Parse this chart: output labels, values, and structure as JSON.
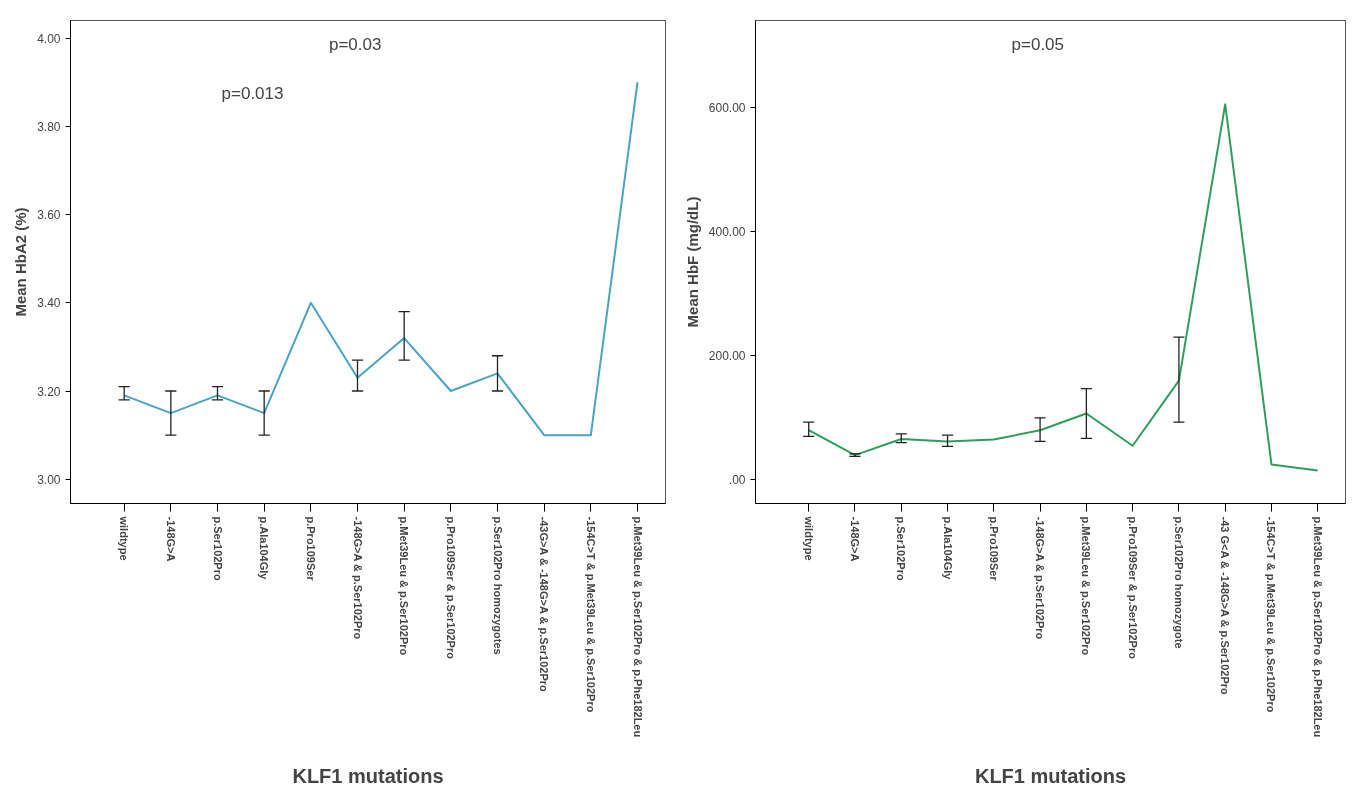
{
  "chart_data": [
    {
      "type": "line",
      "xlabel": "KLF1 mutations",
      "ylabel": "Mean HbA2 (%)",
      "categories": [
        "wildtype",
        "-148G>A",
        "p.Ser102Pro",
        "p.Ala104Gly",
        "p.Pro109Ser",
        "-148G>A & p.Ser102Pro",
        "p.Met39Leu & p.Ser102Pro",
        "p.Pro109Ser & p.Ser102Pro",
        "p.Ser102Pro homozygotes",
        "-43G>A & -148G>A & p.Ser102Pro",
        "-154C>T & p.Met39Leu & p.Ser102Pro",
        "p.Met39Leu & p.Ser102Pro & p.Phe182Leu"
      ],
      "series": [
        {
          "color": "#4aa3c2",
          "values": [
            3.19,
            3.15,
            3.19,
            3.15,
            3.4,
            3.23,
            3.32,
            3.2,
            3.24,
            3.1,
            3.1,
            3.9
          ],
          "errors": [
            [
              3.18,
              3.21
            ],
            [
              3.1,
              3.2
            ],
            [
              3.18,
              3.21
            ],
            [
              3.1,
              3.2
            ],
            null,
            [
              3.2,
              3.27
            ],
            [
              3.27,
              3.38
            ],
            null,
            [
              3.2,
              3.28
            ],
            null,
            null,
            null
          ]
        }
      ],
      "ylim": [
        2.945,
        4.04
      ],
      "yticks": [
        {
          "value": 3.0,
          "label": "3.00"
        },
        {
          "value": 3.2,
          "label": "3.20"
        },
        {
          "value": 3.4,
          "label": "3.40"
        },
        {
          "value": 3.6,
          "label": "3.60"
        },
        {
          "value": 3.8,
          "label": "3.80"
        },
        {
          "value": 4.0,
          "label": "4.00"
        }
      ],
      "grid": false,
      "annotations": [
        "p=0.013",
        "p=0.03"
      ]
    },
    {
      "type": "line",
      "xlabel": "KLF1 mutations",
      "ylabel": "Mean HbF (mg/dL)",
      "categories": [
        "wildtype",
        "-148G>A",
        "p.Ser102Pro",
        "p.Ala104Gly",
        "p.Pro109Ser",
        "-148G>A & p.Ser102Pro",
        "p.Met39Leu & p.Ser102Pro",
        "p.Pro109Ser & p.Ser102Pro",
        "p.Ser102Pro homozygote",
        "-43 G<A & -148G>A & p.Ser102Pro",
        "-154C>T & p.Met39Leu & p.Ser102Pro",
        "p.Met39Leu & p.Ser102Pro & p.Phe182Leu"
      ],
      "series": [
        {
          "color": "#2e9e5c",
          "values": [
            80,
            40,
            66,
            62,
            65,
            80,
            107,
            55,
            160,
            605,
            25,
            15
          ],
          "errors": [
            [
              70,
              93
            ],
            [
              38,
              42
            ],
            [
              60,
              74
            ],
            [
              54,
              72
            ],
            null,
            [
              62,
              100
            ],
            [
              67,
              147
            ],
            null,
            [
              93,
              230
            ],
            null,
            null,
            null
          ]
        }
      ],
      "ylim": [
        -38,
        740
      ],
      "yticks": [
        {
          "value": 0,
          "label": ".00"
        },
        {
          "value": 200,
          "label": "200.00"
        },
        {
          "value": 400,
          "label": "400.00"
        },
        {
          "value": 600,
          "label": "600.00"
        }
      ],
      "grid": false,
      "annotations": [
        "p=0.05"
      ]
    }
  ]
}
